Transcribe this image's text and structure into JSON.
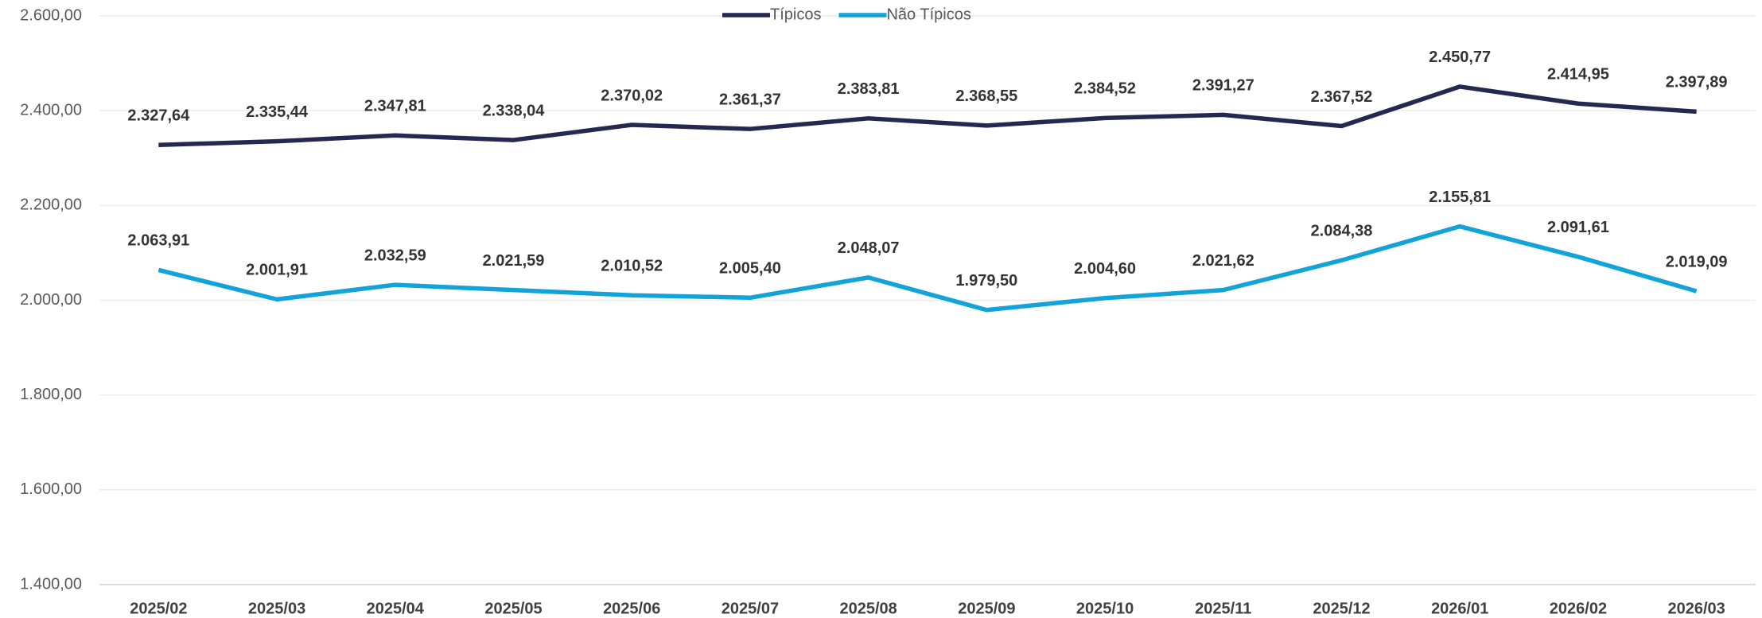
{
  "chart_data": {
    "type": "line",
    "categories": [
      "2025/02",
      "2025/03",
      "2025/04",
      "2025/05",
      "2025/06",
      "2025/07",
      "2025/08",
      "2025/09",
      "2025/10",
      "2025/11",
      "2025/12",
      "2026/01",
      "2026/02",
      "2026/03"
    ],
    "series": [
      {
        "name": "Típicos",
        "color": "#252850",
        "values": [
          2327.64,
          2335.44,
          2347.81,
          2338.04,
          2370.02,
          2361.37,
          2383.81,
          2368.55,
          2384.52,
          2391.27,
          2367.52,
          2450.77,
          2414.95,
          2397.89
        ],
        "value_labels": [
          "2.327,64",
          "2.335,44",
          "2.347,81",
          "2.338,04",
          "2.370,02",
          "2.361,37",
          "2.383,81",
          "2.368,55",
          "2.384,52",
          "2.391,27",
          "2.367,52",
          "2.450,77",
          "2.414,95",
          "2.397,89"
        ]
      },
      {
        "name": "Não Típicos",
        "color": "#12a3d8",
        "values": [
          2063.91,
          2001.91,
          2032.59,
          2021.59,
          2010.52,
          2005.4,
          2048.07,
          1979.5,
          2004.6,
          2021.62,
          2084.38,
          2155.81,
          2091.61,
          2019.09
        ],
        "value_labels": [
          "2.063,91",
          "2.001,91",
          "2.032,59",
          "2.021,59",
          "2.010,52",
          "2.005,40",
          "2.048,07",
          "1.979,50",
          "2.004,60",
          "2.021,62",
          "2.084,38",
          "2.155,81",
          "2.091,61",
          "2.019,09"
        ]
      }
    ],
    "ylim": [
      1400,
      2600
    ],
    "yticks": [
      {
        "value": 1400,
        "label": "1.400,00"
      },
      {
        "value": 1600,
        "label": "1.600,00"
      },
      {
        "value": 1800,
        "label": "1.800,00"
      },
      {
        "value": 2000,
        "label": "2.000,00"
      },
      {
        "value": 2200,
        "label": "2.200,00"
      },
      {
        "value": 2400,
        "label": "2.400,00"
      },
      {
        "value": 2600,
        "label": "2.600,00"
      }
    ],
    "grid": true,
    "legend": "top"
  }
}
